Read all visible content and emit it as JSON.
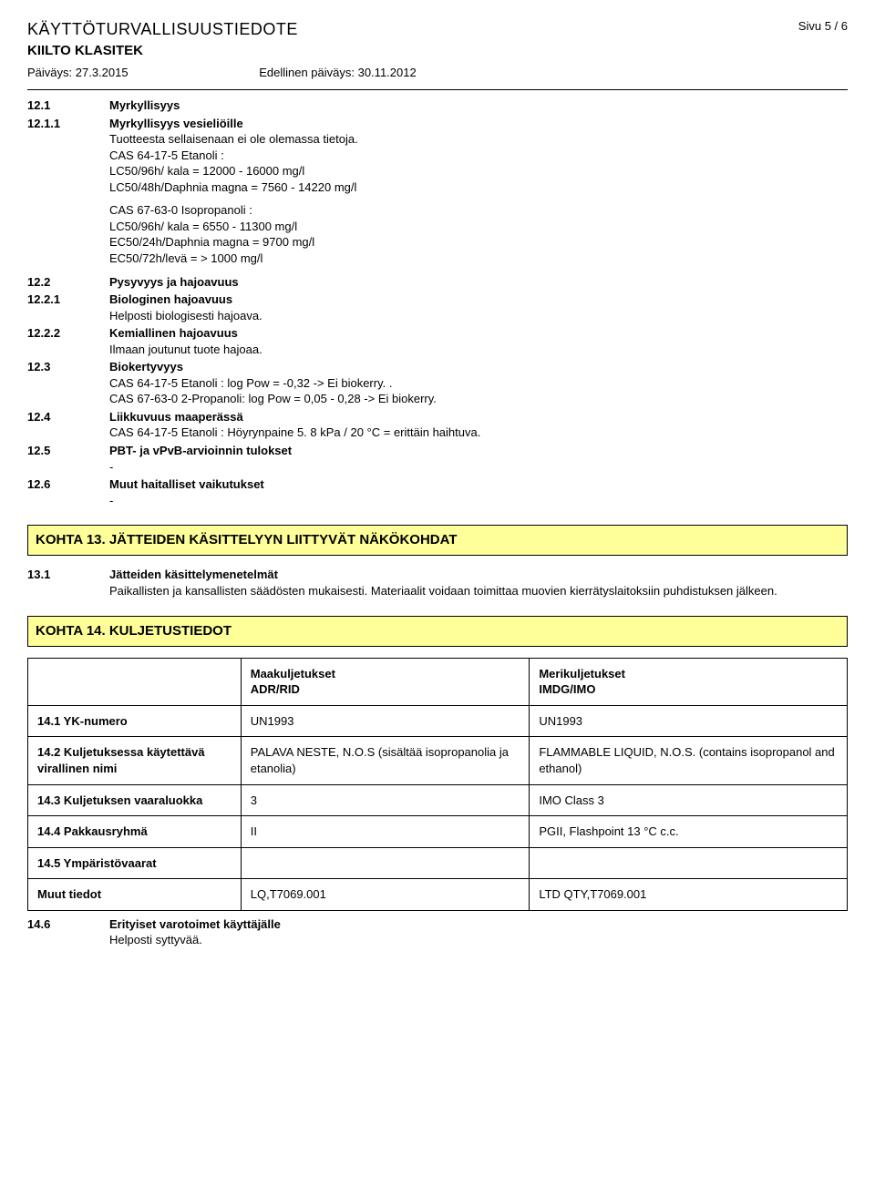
{
  "header": {
    "doc_title": "KÄYTTÖTURVALLISUUSTIEDOTE",
    "product": "KIILTO KLASITEK",
    "date_label": "Päiväys: 27.3.2015",
    "prev_date_label": "Edellinen päiväys: 30.11.2012",
    "page": "Sivu  5 / 6"
  },
  "s12": {
    "n1": "12.1",
    "h1": "Myrkyllisyys",
    "n11": "12.1.1",
    "h11": "Myrkyllisyys vesieliöille",
    "t11a": "Tuotteesta sellaisenaan ei ole olemassa tietoja.",
    "t11b": "CAS 64-17-5 Etanoli :",
    "t11c": "LC50/96h/ kala = 12000 - 16000  mg/l",
    "t11d": "LC50/48h/Daphnia magna = 7560 - 14220 mg/l",
    "t11e": "CAS 67-63-0 Isopropanoli :",
    "t11f": "LC50/96h/ kala = 6550 - 11300  mg/l",
    "t11g": "EC50/24h/Daphnia magna = 9700 mg/l",
    "t11h": "EC50/72h/levä  = > 1000 mg/l",
    "n2": "12.2",
    "h2": "Pysyvyys ja hajoavuus",
    "n21": "12.2.1",
    "h21": "Biologinen hajoavuus",
    "t21": "Helposti biologisesti hajoava.",
    "n22": "12.2.2",
    "h22": "Kemiallinen hajoavuus",
    "t22": "Ilmaan joutunut tuote hajoaa.",
    "n3": "12.3",
    "h3": "Biokertyvyys",
    "t3a": "CAS 64-17-5 Etanoli : log Pow = -0,32 -> Ei biokerry. .",
    "t3b": "CAS 67-63-0 2-Propanoli: log Pow = 0,05 - 0,28 -> Ei biokerry.",
    "n4": "12.4",
    "h4": "Liikkuvuus maaperässä",
    "t4": "CAS 64-17-5 Etanoli : Höyrynpaine 5. 8 kPa / 20 °C  = erittäin haihtuva.",
    "n5": "12.5",
    "h5": "PBT- ja vPvB-arvioinnin tulokset",
    "t5": "-",
    "n6": "12.6",
    "h6": "Muut haitalliset vaikutukset",
    "t6": "-"
  },
  "s13": {
    "bar": "KOHTA 13. JÄTTEIDEN KÄSITTELYYN LIITTYVÄT NÄKÖKOHDAT",
    "n1": "13.1",
    "h1": "Jätteiden käsittelymenetelmät",
    "t1": "Paikallisten ja kansallisten säädösten mukaisesti. Materiaalit voidaan toimittaa muovien kierrätyslaitoksiin puhdistuksen jälkeen."
  },
  "s14": {
    "bar": "KOHTA 14. KULJETUSTIEDOT",
    "col1a": "Maakuljetukset",
    "col1b": "ADR/RID",
    "col2a": "Merikuljetukset",
    "col2b": "IMDG/IMO",
    "r1_label": "14.1 YK-numero",
    "r1_c1": "UN1993",
    "r1_c2": "UN1993",
    "r2_label": "14.2 Kuljetuksessa käytettävä virallinen nimi",
    "r2_c1": "PALAVA NESTE, N.O.S (sisältää isopropanolia ja etanolia)",
    "r2_c2": "FLAMMABLE LIQUID, N.O.S. (contains isopropanol and ethanol)",
    "r3_label": "14.3 Kuljetuksen vaaraluokka",
    "r3_c1": "3",
    "r3_c2": "IMO Class 3",
    "r4_label": "14.4 Pakkausryhmä",
    "r4_c1": "II",
    "r4_c2": "PGII, Flashpoint 13 °C c.c.",
    "r5_label": "14.5 Ympäristövaarat",
    "r5_c1": "",
    "r5_c2": "",
    "r6_label": "Muut tiedot",
    "r6_c1": "LQ,T7069.001",
    "r6_c2": "LTD QTY,T7069.001",
    "n6": "14.6",
    "h6": "Erityiset varotoimet käyttäjälle",
    "t6": "Helposti syttyvää."
  }
}
